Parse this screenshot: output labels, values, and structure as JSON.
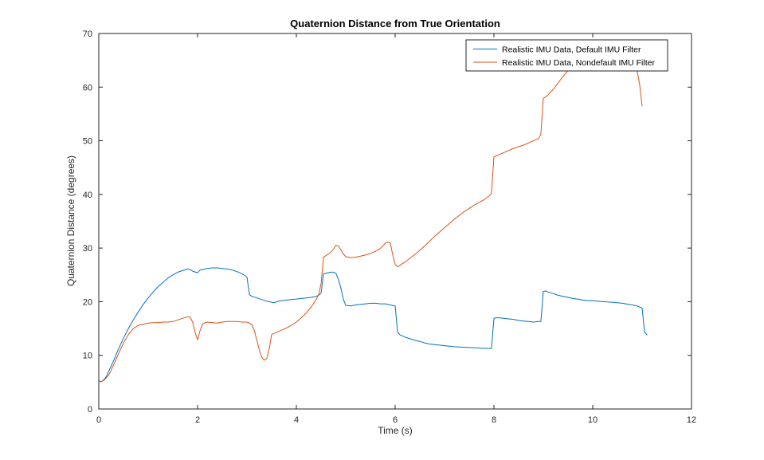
{
  "chart_data": {
    "type": "line",
    "title": "Quaternion Distance from True Orientation",
    "xlabel": "Time (s)",
    "ylabel": "Quaternion Distance (degrees)",
    "xlim": [
      0,
      12
    ],
    "ylim": [
      0,
      70
    ],
    "xticks": [
      0,
      2,
      4,
      6,
      8,
      10,
      12
    ],
    "yticks": [
      0,
      10,
      20,
      30,
      40,
      50,
      60,
      70
    ],
    "grid": false,
    "background": "#ffffff",
    "axis_color": "#262626",
    "legend": {
      "position": "top-right",
      "border": true
    },
    "series": [
      {
        "name": "Realistic IMU Data, Default IMU Filter",
        "color": "#0072BD",
        "points": [
          [
            0,
            5.2
          ],
          [
            0.05,
            5.1
          ],
          [
            0.1,
            5.4
          ],
          [
            0.15,
            6.0
          ],
          [
            0.2,
            7.0
          ],
          [
            0.3,
            9.0
          ],
          [
            0.4,
            11.2
          ],
          [
            0.5,
            13.2
          ],
          [
            0.6,
            15.0
          ],
          [
            0.7,
            16.6
          ],
          [
            0.8,
            18.1
          ],
          [
            0.9,
            19.5
          ],
          [
            1.0,
            20.7
          ],
          [
            1.1,
            21.8
          ],
          [
            1.2,
            22.8
          ],
          [
            1.3,
            23.6
          ],
          [
            1.4,
            24.4
          ],
          [
            1.5,
            25.0
          ],
          [
            1.6,
            25.5
          ],
          [
            1.7,
            25.8
          ],
          [
            1.8,
            26.1
          ],
          [
            1.85,
            26.0
          ],
          [
            1.9,
            25.7
          ],
          [
            2.0,
            25.4
          ],
          [
            2.05,
            25.9
          ],
          [
            2.1,
            26.0
          ],
          [
            2.2,
            26.2
          ],
          [
            2.3,
            26.3
          ],
          [
            2.4,
            26.3
          ],
          [
            2.5,
            26.2
          ],
          [
            2.6,
            26.1
          ],
          [
            2.7,
            25.9
          ],
          [
            2.8,
            25.6
          ],
          [
            2.9,
            25.2
          ],
          [
            3.0,
            24.6
          ],
          [
            3.05,
            21.3
          ],
          [
            3.1,
            21.0
          ],
          [
            3.2,
            20.7
          ],
          [
            3.3,
            20.4
          ],
          [
            3.4,
            20.1
          ],
          [
            3.5,
            19.9
          ],
          [
            3.55,
            19.8
          ],
          [
            3.6,
            20.0
          ],
          [
            3.7,
            20.2
          ],
          [
            3.8,
            20.3
          ],
          [
            3.9,
            20.4
          ],
          [
            4.0,
            20.5
          ],
          [
            4.1,
            20.6
          ],
          [
            4.2,
            20.7
          ],
          [
            4.3,
            20.8
          ],
          [
            4.4,
            21.0
          ],
          [
            4.45,
            21.2
          ],
          [
            4.5,
            21.6
          ],
          [
            4.55,
            25.2
          ],
          [
            4.6,
            25.3
          ],
          [
            4.7,
            25.5
          ],
          [
            4.75,
            25.5
          ],
          [
            4.8,
            25.3
          ],
          [
            4.85,
            24.2
          ],
          [
            4.9,
            22.6
          ],
          [
            4.95,
            20.5
          ],
          [
            5.0,
            19.3
          ],
          [
            5.1,
            19.2
          ],
          [
            5.2,
            19.4
          ],
          [
            5.3,
            19.5
          ],
          [
            5.4,
            19.6
          ],
          [
            5.5,
            19.7
          ],
          [
            5.6,
            19.7
          ],
          [
            5.7,
            19.6
          ],
          [
            5.8,
            19.6
          ],
          [
            5.9,
            19.4
          ],
          [
            6.0,
            19.2
          ],
          [
            6.05,
            14.3
          ],
          [
            6.1,
            13.8
          ],
          [
            6.2,
            13.4
          ],
          [
            6.3,
            13.1
          ],
          [
            6.4,
            12.8
          ],
          [
            6.5,
            12.6
          ],
          [
            6.6,
            12.3
          ],
          [
            6.7,
            12.1
          ],
          [
            6.8,
            12.0
          ],
          [
            6.9,
            11.9
          ],
          [
            7.0,
            11.8
          ],
          [
            7.2,
            11.6
          ],
          [
            7.4,
            11.5
          ],
          [
            7.6,
            11.4
          ],
          [
            7.8,
            11.3
          ],
          [
            7.95,
            11.3
          ],
          [
            8.0,
            16.9
          ],
          [
            8.05,
            17.0
          ],
          [
            8.1,
            17.0
          ],
          [
            8.2,
            16.9
          ],
          [
            8.3,
            16.8
          ],
          [
            8.4,
            16.7
          ],
          [
            8.5,
            16.5
          ],
          [
            8.6,
            16.4
          ],
          [
            8.7,
            16.3
          ],
          [
            8.8,
            16.2
          ],
          [
            8.9,
            16.3
          ],
          [
            8.95,
            16.3
          ],
          [
            9.0,
            21.9
          ],
          [
            9.05,
            22.0
          ],
          [
            9.1,
            21.8
          ],
          [
            9.2,
            21.5
          ],
          [
            9.3,
            21.2
          ],
          [
            9.4,
            21.0
          ],
          [
            9.5,
            20.8
          ],
          [
            9.6,
            20.6
          ],
          [
            9.7,
            20.5
          ],
          [
            9.8,
            20.3
          ],
          [
            9.9,
            20.2
          ],
          [
            10.0,
            20.2
          ],
          [
            10.2,
            20.0
          ],
          [
            10.4,
            19.9
          ],
          [
            10.6,
            19.7
          ],
          [
            10.8,
            19.4
          ],
          [
            10.9,
            19.2
          ],
          [
            11.0,
            18.8
          ],
          [
            11.05,
            14.3
          ],
          [
            11.1,
            13.8
          ]
        ]
      },
      {
        "name": "Realistic IMU Data, Nondefault IMU Filter",
        "color": "#D95319",
        "points": [
          [
            0,
            5.2
          ],
          [
            0.05,
            5.1
          ],
          [
            0.1,
            5.3
          ],
          [
            0.2,
            6.3
          ],
          [
            0.3,
            8.2
          ],
          [
            0.4,
            10.3
          ],
          [
            0.5,
            12.3
          ],
          [
            0.6,
            13.9
          ],
          [
            0.7,
            15.0
          ],
          [
            0.8,
            15.6
          ],
          [
            0.9,
            15.8
          ],
          [
            1.0,
            16.0
          ],
          [
            1.1,
            16.1
          ],
          [
            1.2,
            16.1
          ],
          [
            1.3,
            16.2
          ],
          [
            1.4,
            16.2
          ],
          [
            1.5,
            16.3
          ],
          [
            1.6,
            16.6
          ],
          [
            1.7,
            16.9
          ],
          [
            1.8,
            17.2
          ],
          [
            1.85,
            17.1
          ],
          [
            1.9,
            16.2
          ],
          [
            1.95,
            14.3
          ],
          [
            2.0,
            12.9
          ],
          [
            2.05,
            14.6
          ],
          [
            2.1,
            15.8
          ],
          [
            2.15,
            16.1
          ],
          [
            2.2,
            16.2
          ],
          [
            2.3,
            16.1
          ],
          [
            2.4,
            16.0
          ],
          [
            2.5,
            16.2
          ],
          [
            2.6,
            16.3
          ],
          [
            2.7,
            16.3
          ],
          [
            2.8,
            16.3
          ],
          [
            2.9,
            16.2
          ],
          [
            3.0,
            16.2
          ],
          [
            3.05,
            16.0
          ],
          [
            3.1,
            15.7
          ],
          [
            3.15,
            14.6
          ],
          [
            3.2,
            12.8
          ],
          [
            3.25,
            11.0
          ],
          [
            3.3,
            9.6
          ],
          [
            3.35,
            9.1
          ],
          [
            3.4,
            9.4
          ],
          [
            3.45,
            11.2
          ],
          [
            3.5,
            13.9
          ],
          [
            3.55,
            14.1
          ],
          [
            3.6,
            14.3
          ],
          [
            3.7,
            14.7
          ],
          [
            3.8,
            15.1
          ],
          [
            3.9,
            15.6
          ],
          [
            4.0,
            16.2
          ],
          [
            4.1,
            17.0
          ],
          [
            4.2,
            17.9
          ],
          [
            4.3,
            19.0
          ],
          [
            4.4,
            20.4
          ],
          [
            4.45,
            21.3
          ],
          [
            4.5,
            23.3
          ],
          [
            4.55,
            28.3
          ],
          [
            4.6,
            28.6
          ],
          [
            4.7,
            29.2
          ],
          [
            4.75,
            29.8
          ],
          [
            4.8,
            30.5
          ],
          [
            4.85,
            30.4
          ],
          [
            4.9,
            29.7
          ],
          [
            4.95,
            28.9
          ],
          [
            5.0,
            28.4
          ],
          [
            5.1,
            28.2
          ],
          [
            5.2,
            28.3
          ],
          [
            5.3,
            28.5
          ],
          [
            5.4,
            28.7
          ],
          [
            5.5,
            29.0
          ],
          [
            5.6,
            29.4
          ],
          [
            5.7,
            29.9
          ],
          [
            5.8,
            30.9
          ],
          [
            5.85,
            31.1
          ],
          [
            5.9,
            31.0
          ],
          [
            5.95,
            28.8
          ],
          [
            6.0,
            27.0
          ],
          [
            6.05,
            26.5
          ],
          [
            6.1,
            26.8
          ],
          [
            6.2,
            27.4
          ],
          [
            6.3,
            28.1
          ],
          [
            6.4,
            28.8
          ],
          [
            6.5,
            29.6
          ],
          [
            6.6,
            30.4
          ],
          [
            6.7,
            31.3
          ],
          [
            6.8,
            32.2
          ],
          [
            6.9,
            33.0
          ],
          [
            7.0,
            33.8
          ],
          [
            7.1,
            34.6
          ],
          [
            7.2,
            35.4
          ],
          [
            7.3,
            36.1
          ],
          [
            7.4,
            36.8
          ],
          [
            7.5,
            37.4
          ],
          [
            7.6,
            38.0
          ],
          [
            7.7,
            38.5
          ],
          [
            7.8,
            39.0
          ],
          [
            7.9,
            39.7
          ],
          [
            7.95,
            40.2
          ],
          [
            8.0,
            47.0
          ],
          [
            8.05,
            47.2
          ],
          [
            8.1,
            47.4
          ],
          [
            8.2,
            47.8
          ],
          [
            8.3,
            48.2
          ],
          [
            8.4,
            48.6
          ],
          [
            8.5,
            48.9
          ],
          [
            8.6,
            49.2
          ],
          [
            8.7,
            49.6
          ],
          [
            8.8,
            50.0
          ],
          [
            8.9,
            50.4
          ],
          [
            8.95,
            51.2
          ],
          [
            9.0,
            57.9
          ],
          [
            9.05,
            58.2
          ],
          [
            9.1,
            58.6
          ],
          [
            9.2,
            59.6
          ],
          [
            9.3,
            60.8
          ],
          [
            9.4,
            62.0
          ],
          [
            9.5,
            63.1
          ],
          [
            9.6,
            63.9
          ],
          [
            9.7,
            64.5
          ],
          [
            9.8,
            64.9
          ],
          [
            9.9,
            65.2
          ],
          [
            10.0,
            65.5
          ],
          [
            10.2,
            65.8
          ],
          [
            10.4,
            65.8
          ],
          [
            10.6,
            65.5
          ],
          [
            10.8,
            64.8
          ],
          [
            10.85,
            64.2
          ],
          [
            10.9,
            63.0
          ],
          [
            10.95,
            60.5
          ],
          [
            11.0,
            56.5
          ]
        ]
      }
    ]
  }
}
